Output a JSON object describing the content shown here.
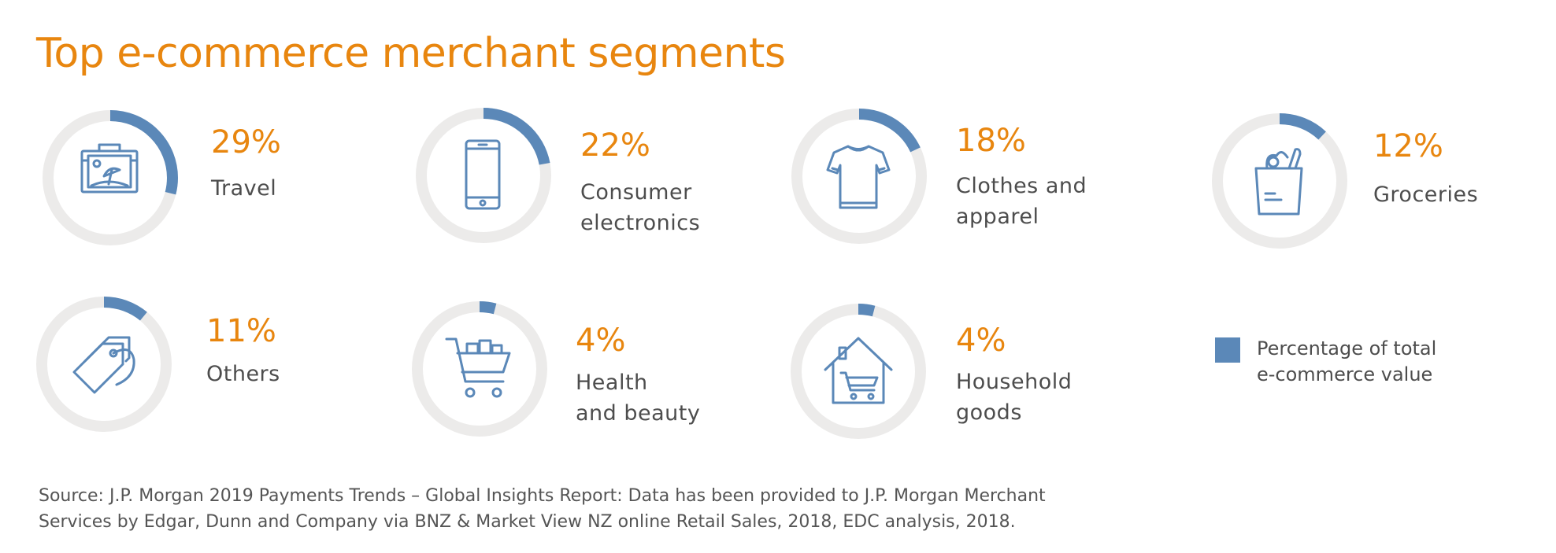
{
  "title": "Top e-commerce merchant segments",
  "colors": {
    "accent": "#e8860f",
    "series": "#5b88b8",
    "track": "#ecebea",
    "text": "#4d4d4d"
  },
  "chart_data": {
    "type": "pie",
    "series_name": "Percentage of total e-commerce value",
    "segments": [
      {
        "pct_label": "29%",
        "value": 29,
        "label_lines": [
          "Travel"
        ],
        "icon": "suitcase-icon"
      },
      {
        "pct_label": "22%",
        "value": 22,
        "label_lines": [
          "Consumer",
          "electronics"
        ],
        "icon": "tablet-icon"
      },
      {
        "pct_label": "18%",
        "value": 18,
        "label_lines": [
          "Clothes and",
          "apparel"
        ],
        "icon": "tshirt-icon"
      },
      {
        "pct_label": "12%",
        "value": 12,
        "label_lines": [
          "Groceries"
        ],
        "icon": "grocery-bag-icon"
      },
      {
        "pct_label": "11%",
        "value": 11,
        "label_lines": [
          "Others"
        ],
        "icon": "price-tag-icon"
      },
      {
        "pct_label": "4%",
        "value": 4,
        "label_lines": [
          "Health",
          "and beauty"
        ],
        "icon": "shopping-cart-icon"
      },
      {
        "pct_label": "4%",
        "value": 4,
        "label_lines": [
          "Household",
          "goods"
        ],
        "icon": "house-cart-icon"
      }
    ]
  },
  "legend": {
    "lines": [
      "Percentage of total",
      "e-commerce value"
    ]
  },
  "source": {
    "lines": [
      "Source: J.P. Morgan 2019 Payments Trends – Global Insights Report: Data has been provided to J.P. Morgan Merchant",
      "Services by Edgar, Dunn and Company via BNZ & Market View NZ online Retail Sales, 2018, EDC analysis, 2018."
    ]
  }
}
